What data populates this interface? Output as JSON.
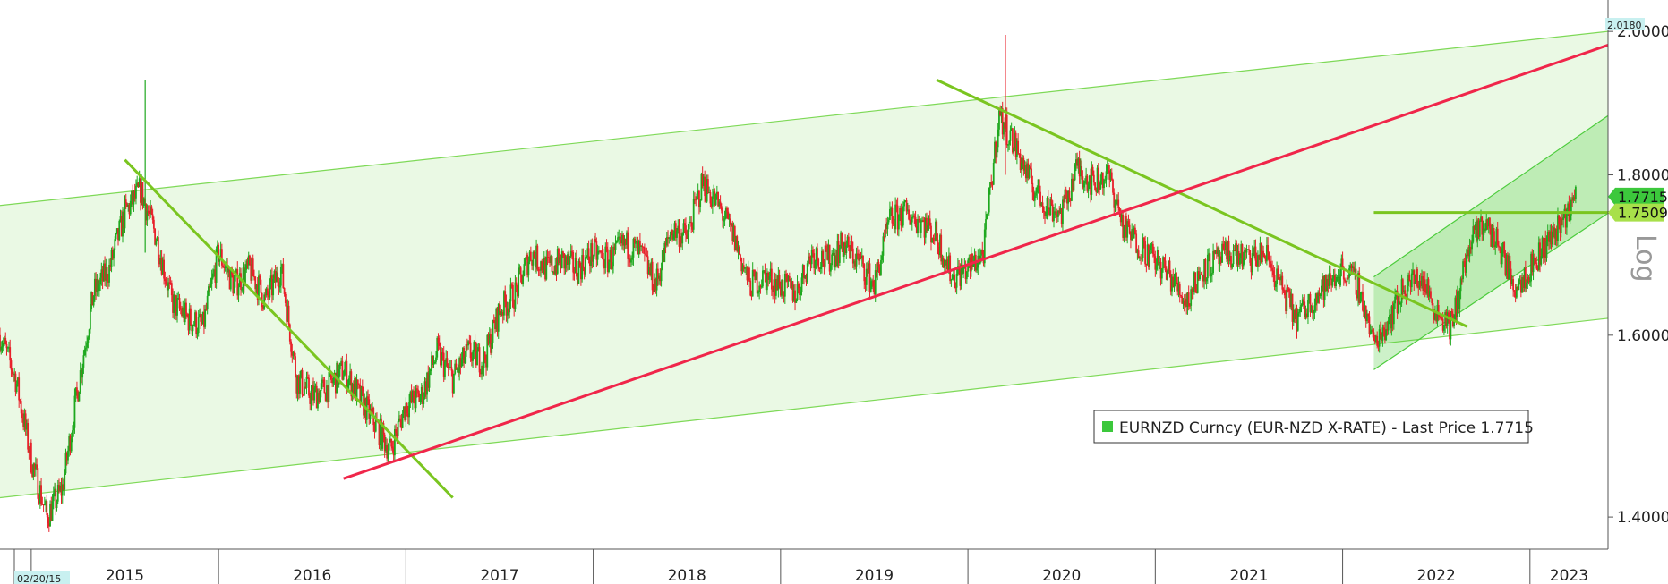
{
  "chart_data": {
    "type": "candlestick",
    "title": "",
    "y_scale": "log",
    "y_scale_label": "Log",
    "ylim": [
      1.38,
      2.02
    ],
    "y_ticks": [
      "1.4000",
      "1.6000",
      "1.8000",
      "2.0000"
    ],
    "y_top_value": "2.0180",
    "x_start_label": "02/20/15",
    "x_labels": [
      "2015",
      "2016",
      "2017",
      "2018",
      "2019",
      "2020",
      "2021",
      "2022",
      "2023"
    ],
    "x_range": [
      "2014-11",
      "2023-06"
    ],
    "last_price": "1.7715",
    "level_label": "1.7509",
    "legend": {
      "text": "EURNZD Curncy (EUR-NZD X-RATE) - Last Price 1.7715",
      "placement": "bottom-right"
    },
    "series": [
      {
        "name": "EURNZD Curncy (EUR-NZD X-RATE)",
        "points": [
          [
            "2014-11",
            1.6
          ],
          [
            "2014-12",
            1.55
          ],
          [
            "2015-01",
            1.46
          ],
          [
            "2015-02",
            1.4
          ],
          [
            "2015-03",
            1.43
          ],
          [
            "2015-04",
            1.54
          ],
          [
            "2015-05",
            1.65
          ],
          [
            "2015-06",
            1.68
          ],
          [
            "2015-07",
            1.75
          ],
          [
            "2015-08",
            1.78
          ],
          [
            "2015-09",
            1.72
          ],
          [
            "2015-10",
            1.64
          ],
          [
            "2015-11",
            1.62
          ],
          [
            "2015-12",
            1.61
          ],
          [
            "2016-01",
            1.7
          ],
          [
            "2016-02",
            1.66
          ],
          [
            "2016-03",
            1.68
          ],
          [
            "2016-04",
            1.64
          ],
          [
            "2016-05",
            1.68
          ],
          [
            "2016-06",
            1.55
          ],
          [
            "2016-07",
            1.53
          ],
          [
            "2016-08",
            1.54
          ],
          [
            "2016-09",
            1.56
          ],
          [
            "2016-10",
            1.53
          ],
          [
            "2016-11",
            1.5
          ],
          [
            "2016-12",
            1.47
          ],
          [
            "2017-01",
            1.52
          ],
          [
            "2017-02",
            1.53
          ],
          [
            "2017-03",
            1.58
          ],
          [
            "2017-04",
            1.55
          ],
          [
            "2017-05",
            1.58
          ],
          [
            "2017-06",
            1.57
          ],
          [
            "2017-07",
            1.63
          ],
          [
            "2017-08",
            1.65
          ],
          [
            "2017-09",
            1.7
          ],
          [
            "2017-10",
            1.68
          ],
          [
            "2017-11",
            1.69
          ],
          [
            "2017-12",
            1.68
          ],
          [
            "2018-01",
            1.7
          ],
          [
            "2018-02",
            1.69
          ],
          [
            "2018-03",
            1.71
          ],
          [
            "2018-04",
            1.7
          ],
          [
            "2018-05",
            1.66
          ],
          [
            "2018-06",
            1.73
          ],
          [
            "2018-07",
            1.72
          ],
          [
            "2018-08",
            1.79
          ],
          [
            "2018-09",
            1.76
          ],
          [
            "2018-10",
            1.72
          ],
          [
            "2018-11",
            1.66
          ],
          [
            "2018-12",
            1.67
          ],
          [
            "2019-01",
            1.66
          ],
          [
            "2019-02",
            1.65
          ],
          [
            "2019-03",
            1.7
          ],
          [
            "2019-04",
            1.69
          ],
          [
            "2019-05",
            1.71
          ],
          [
            "2019-06",
            1.69
          ],
          [
            "2019-07",
            1.66
          ],
          [
            "2019-08",
            1.74
          ],
          [
            "2019-09",
            1.75
          ],
          [
            "2019-10",
            1.74
          ],
          [
            "2019-11",
            1.72
          ],
          [
            "2019-12",
            1.67
          ],
          [
            "2020-01",
            1.68
          ],
          [
            "2020-02",
            1.7
          ],
          [
            "2020-03",
            1.88
          ],
          [
            "2020-04",
            1.84
          ],
          [
            "2020-05",
            1.79
          ],
          [
            "2020-06",
            1.76
          ],
          [
            "2020-07",
            1.75
          ],
          [
            "2020-08",
            1.81
          ],
          [
            "2020-09",
            1.79
          ],
          [
            "2020-10",
            1.8
          ],
          [
            "2020-11",
            1.73
          ],
          [
            "2020-12",
            1.71
          ],
          [
            "2021-01",
            1.69
          ],
          [
            "2021-02",
            1.67
          ],
          [
            "2021-03",
            1.64
          ],
          [
            "2021-04",
            1.68
          ],
          [
            "2021-05",
            1.69
          ],
          [
            "2021-06",
            1.7
          ],
          [
            "2021-07",
            1.69
          ],
          [
            "2021-08",
            1.7
          ],
          [
            "2021-09",
            1.66
          ],
          [
            "2021-10",
            1.62
          ],
          [
            "2021-11",
            1.64
          ],
          [
            "2021-12",
            1.66
          ],
          [
            "2022-01",
            1.68
          ],
          [
            "2022-02",
            1.66
          ],
          [
            "2022-03",
            1.59
          ],
          [
            "2022-04",
            1.62
          ],
          [
            "2022-05",
            1.66
          ],
          [
            "2022-06",
            1.67
          ],
          [
            "2022-07",
            1.63
          ],
          [
            "2022-08",
            1.61
          ],
          [
            "2022-09",
            1.7
          ],
          [
            "2022-10",
            1.74
          ],
          [
            "2022-11",
            1.71
          ],
          [
            "2022-12",
            1.66
          ],
          [
            "2023-01",
            1.68
          ],
          [
            "2023-02",
            1.71
          ],
          [
            "2023-03",
            1.74
          ],
          [
            "2023-04",
            1.7715
          ]
        ]
      }
    ],
    "overlays": [
      {
        "type": "channel",
        "color": "#7ed957",
        "upper": [
          [
            "2014-11",
            1.76
          ],
          [
            "2023-06",
            2.0
          ]
        ],
        "lower": [
          [
            "2014-11",
            1.42
          ],
          [
            "2023-06",
            1.62
          ]
        ]
      },
      {
        "type": "channel",
        "color": "#4ccc3c",
        "upper": [
          [
            "2022-03",
            1.67
          ],
          [
            "2023-06",
            1.88
          ]
        ],
        "lower": [
          [
            "2022-03",
            1.56
          ],
          [
            "2023-06",
            1.75
          ]
        ]
      },
      {
        "type": "trendline",
        "color": "#7ac520",
        "points": [
          [
            "2015-07",
            1.82
          ],
          [
            "2017-04",
            1.42
          ]
        ]
      },
      {
        "type": "trendline",
        "color": "#7ac520",
        "points": [
          [
            "2019-11",
            1.93
          ],
          [
            "2022-09",
            1.61
          ]
        ]
      },
      {
        "type": "trendline",
        "color": "#f0264a",
        "points": [
          [
            "2016-09",
            1.44
          ],
          [
            "2023-06",
            1.98
          ]
        ]
      },
      {
        "type": "hline",
        "color": "#7ac520",
        "value": 1.7509,
        "from": "2022-03"
      }
    ],
    "grid": false,
    "colors": {
      "up": "#1ea81e",
      "down": "#e8202a",
      "axis": "#555555",
      "last_price_badge": "#3cc83c",
      "level_badge": "#a8e04a",
      "top_badge": "#c8f0f0",
      "channel_fill": "#f0fae0",
      "legend_marker": "#3cc83c"
    }
  }
}
